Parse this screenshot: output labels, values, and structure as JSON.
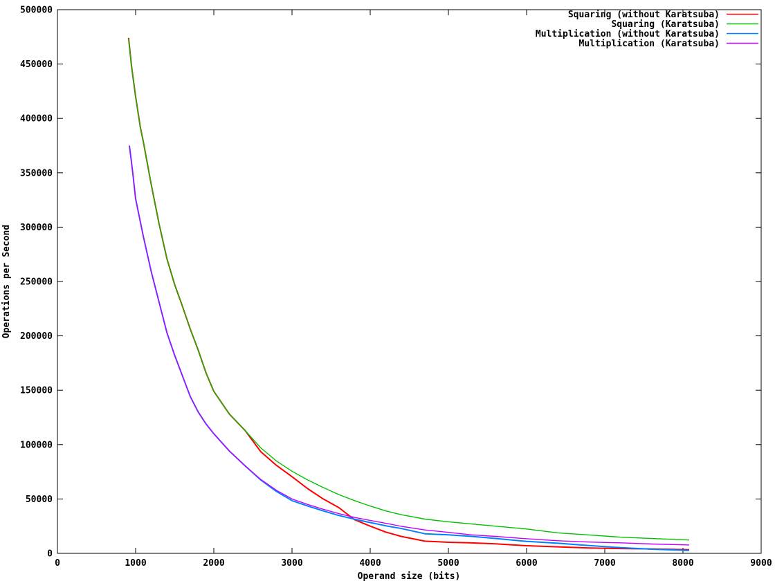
{
  "chart_data": {
    "type": "line",
    "title": "",
    "xlabel": "Operand size (bits)",
    "ylabel": "Operations per Second",
    "xlim": [
      0,
      9000
    ],
    "ylim": [
      0,
      500000
    ],
    "x_ticks": [
      0,
      1000,
      2000,
      3000,
      4000,
      5000,
      6000,
      7000,
      8000,
      9000
    ],
    "y_ticks": [
      0,
      50000,
      100000,
      150000,
      200000,
      250000,
      300000,
      350000,
      400000,
      450000,
      500000
    ],
    "grid": false,
    "legend_position": "inside-top-right",
    "series": [
      {
        "name": "Squaring (without Karatsuba)",
        "color": "#ff0000",
        "points": [
          [
            910,
            474000
          ],
          [
            950,
            447000
          ],
          [
            1000,
            420000
          ],
          [
            1060,
            392000
          ],
          [
            1100,
            378000
          ],
          [
            1200,
            339000
          ],
          [
            1300,
            303000
          ],
          [
            1400,
            271000
          ],
          [
            1500,
            247000
          ],
          [
            1600,
            227000
          ],
          [
            1700,
            206000
          ],
          [
            1800,
            187000
          ],
          [
            1900,
            166000
          ],
          [
            2000,
            149000
          ],
          [
            2200,
            128000
          ],
          [
            2400,
            113000
          ],
          [
            2600,
            93500
          ],
          [
            2800,
            81000
          ],
          [
            3000,
            70500
          ],
          [
            3200,
            59500
          ],
          [
            3400,
            50000
          ],
          [
            3600,
            42000
          ],
          [
            3800,
            31000
          ],
          [
            4000,
            25000
          ],
          [
            4200,
            19500
          ],
          [
            4400,
            15500
          ],
          [
            4700,
            11200
          ],
          [
            5000,
            10200
          ],
          [
            5300,
            9600
          ],
          [
            5600,
            8800
          ],
          [
            6000,
            7000
          ],
          [
            6400,
            6000
          ],
          [
            6800,
            4900
          ],
          [
            7200,
            4400
          ],
          [
            7600,
            4100
          ],
          [
            8080,
            3400
          ]
        ]
      },
      {
        "name": "Squaring (Karatsuba)",
        "color": "#00c000",
        "points": [
          [
            910,
            473000
          ],
          [
            950,
            447000
          ],
          [
            1000,
            420000
          ],
          [
            1060,
            392000
          ],
          [
            1100,
            378000
          ],
          [
            1200,
            339000
          ],
          [
            1300,
            303000
          ],
          [
            1400,
            271000
          ],
          [
            1500,
            247000
          ],
          [
            1600,
            227000
          ],
          [
            1700,
            206000
          ],
          [
            1800,
            187000
          ],
          [
            1900,
            166000
          ],
          [
            2000,
            149000
          ],
          [
            2200,
            128000
          ],
          [
            2400,
            113000
          ],
          [
            2600,
            97000
          ],
          [
            2800,
            85000
          ],
          [
            3000,
            75500
          ],
          [
            3200,
            67500
          ],
          [
            3400,
            60500
          ],
          [
            3600,
            54000
          ],
          [
            3800,
            48500
          ],
          [
            4000,
            43500
          ],
          [
            4200,
            39000
          ],
          [
            4400,
            35500
          ],
          [
            4700,
            31500
          ],
          [
            5000,
            29000
          ],
          [
            5300,
            27000
          ],
          [
            5600,
            25000
          ],
          [
            6000,
            22400
          ],
          [
            6400,
            18800
          ],
          [
            6800,
            16900
          ],
          [
            7200,
            14900
          ],
          [
            7600,
            13600
          ],
          [
            8080,
            12300
          ]
        ]
      },
      {
        "name": "Multiplication (without Karatsuba)",
        "color": "#0080ff",
        "points": [
          [
            920,
            375000
          ],
          [
            960,
            352000
          ],
          [
            1000,
            326000
          ],
          [
            1100,
            291000
          ],
          [
            1200,
            259000
          ],
          [
            1300,
            231000
          ],
          [
            1400,
            203000
          ],
          [
            1500,
            182000
          ],
          [
            1600,
            163000
          ],
          [
            1700,
            144000
          ],
          [
            1800,
            130000
          ],
          [
            1900,
            119000
          ],
          [
            2000,
            110000
          ],
          [
            2200,
            94000
          ],
          [
            2400,
            80500
          ],
          [
            2600,
            67500
          ],
          [
            2800,
            57000
          ],
          [
            3000,
            48500
          ],
          [
            3200,
            43500
          ],
          [
            3400,
            39000
          ],
          [
            3600,
            34800
          ],
          [
            3800,
            31400
          ],
          [
            4000,
            28300
          ],
          [
            4200,
            25300
          ],
          [
            4400,
            22800
          ],
          [
            4700,
            18000
          ],
          [
            5000,
            17000
          ],
          [
            5300,
            15600
          ],
          [
            5600,
            13700
          ],
          [
            6000,
            11000
          ],
          [
            6400,
            9300
          ],
          [
            6800,
            7200
          ],
          [
            7200,
            5200
          ],
          [
            7600,
            3800
          ],
          [
            8080,
            2600
          ]
        ]
      },
      {
        "name": "Multiplication (Karatsuba)",
        "color": "#c000ff",
        "points": [
          [
            920,
            375000
          ],
          [
            960,
            352000
          ],
          [
            1000,
            326000
          ],
          [
            1100,
            291000
          ],
          [
            1200,
            259000
          ],
          [
            1300,
            231000
          ],
          [
            1400,
            203000
          ],
          [
            1500,
            182000
          ],
          [
            1600,
            163000
          ],
          [
            1700,
            144000
          ],
          [
            1800,
            130000
          ],
          [
            1900,
            119000
          ],
          [
            2000,
            110000
          ],
          [
            2200,
            94000
          ],
          [
            2400,
            80500
          ],
          [
            2600,
            68000
          ],
          [
            2800,
            58000
          ],
          [
            3000,
            50000
          ],
          [
            3200,
            45000
          ],
          [
            3400,
            40500
          ],
          [
            3600,
            36500
          ],
          [
            3800,
            33000
          ],
          [
            4000,
            30300
          ],
          [
            4200,
            27600
          ],
          [
            4400,
            24800
          ],
          [
            4700,
            21500
          ],
          [
            5000,
            19300
          ],
          [
            5300,
            17000
          ],
          [
            5600,
            15600
          ],
          [
            6000,
            13400
          ],
          [
            6400,
            11600
          ],
          [
            6800,
            10400
          ],
          [
            7200,
            9700
          ],
          [
            7600,
            8600
          ],
          [
            8080,
            7700
          ]
        ]
      }
    ]
  }
}
